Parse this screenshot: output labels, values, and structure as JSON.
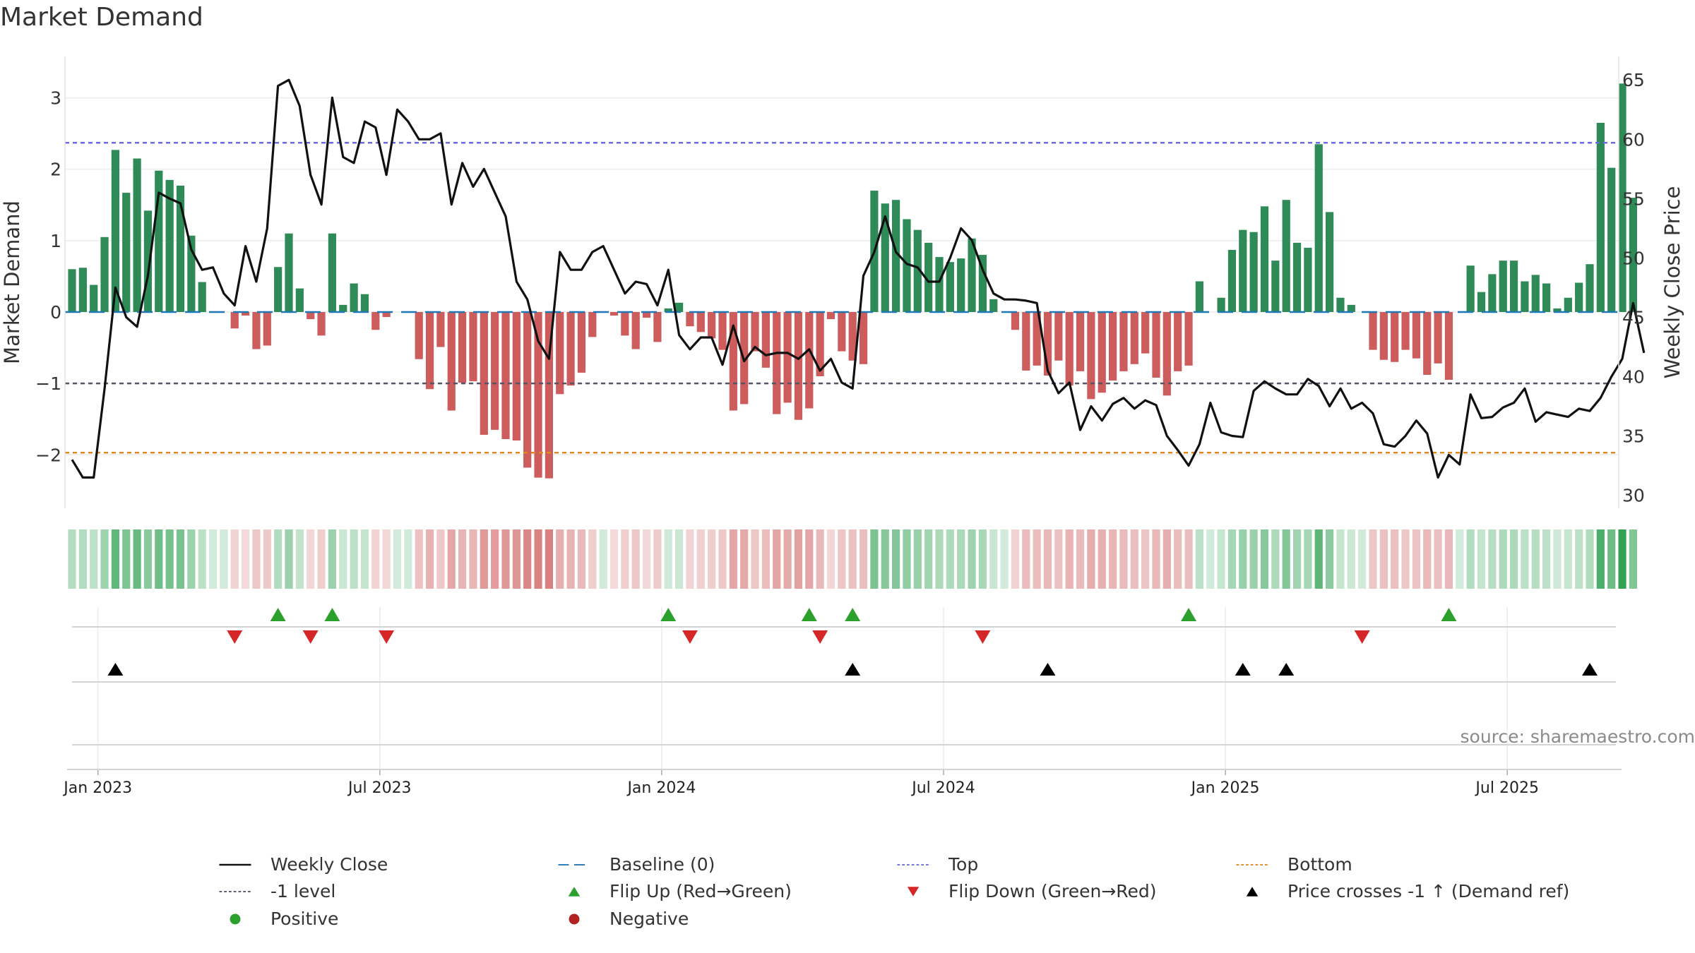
{
  "title": "Market Demand",
  "source": "source: sharemaestro.com",
  "colors": {
    "positive": "#2e8b57",
    "negative": "#cd5c5c",
    "price": "#111111",
    "baseline": "#1f77b4",
    "top": "#6b6be0",
    "minus1": "#555566",
    "bottom": "#e08a1e",
    "flip_up": "#2ca02c",
    "flip_down": "#d62728",
    "cross": "#000000"
  },
  "legend": [
    {
      "key": "close",
      "label": "Weekly Close"
    },
    {
      "key": "baseline",
      "label": "Baseline (0)"
    },
    {
      "key": "top",
      "label": "Top"
    },
    {
      "key": "bottom",
      "label": "Bottom"
    },
    {
      "key": "minus1",
      "label": "-1 level"
    },
    {
      "key": "flip_up",
      "label": "Flip Up (Red→Green)"
    },
    {
      "key": "flip_down",
      "label": "Flip Down (Green→Red)"
    },
    {
      "key": "cross",
      "label": "Price crosses -1 ↑ (Demand ref)"
    },
    {
      "key": "positive",
      "label": "Positive"
    },
    {
      "key": "negative",
      "label": "Negative"
    }
  ],
  "chart_data": {
    "type": "bar",
    "title": "Market Demand",
    "ylabel": "Market Demand",
    "y2label": "Weekly Close Price",
    "ylim": [
      -2.65,
      3.5
    ],
    "y2lim": [
      29.5,
      66.5
    ],
    "yticks": [
      -2,
      -1,
      0,
      1,
      2,
      3
    ],
    "ytick_labels": [
      "−2",
      "−1",
      "0",
      "1",
      "2",
      "3"
    ],
    "y2ticks": [
      30,
      35,
      40,
      45,
      50,
      55,
      60,
      65
    ],
    "y2tick_labels": [
      "30",
      "35",
      "40",
      "45",
      "50",
      "55",
      "60",
      "65"
    ],
    "xticks": [
      2,
      28,
      54,
      80,
      106,
      132
    ],
    "xtick_labels": [
      "Jan 2023",
      "Jul 2023",
      "Jan 2024",
      "Jul 2024",
      "Jan 2025",
      "Jul 2025"
    ],
    "reference_lines": {
      "baseline": 0,
      "top": 2.37,
      "minus1": -1,
      "bottom": -1.97
    },
    "demand": [
      0.6,
      0.62,
      0.38,
      1.05,
      2.27,
      1.67,
      2.15,
      1.42,
      1.98,
      1.85,
      1.77,
      1.07,
      0.42,
      0,
      0,
      -0.23,
      -0.05,
      -0.52,
      -0.47,
      0.63,
      1.1,
      0.33,
      -0.1,
      -0.33,
      1.1,
      0.1,
      0.4,
      0.25,
      -0.25,
      -0.07,
      0,
      0,
      -0.66,
      -1.08,
      -0.49,
      -1.38,
      -0.99,
      -0.97,
      -1.72,
      -1.65,
      -1.78,
      -1.8,
      -2.18,
      -2.32,
      -2.33,
      -1.15,
      -1.03,
      -0.85,
      -0.35,
      0,
      -0.05,
      -0.33,
      -0.52,
      -0.08,
      -0.42,
      0.05,
      0.13,
      -0.2,
      -0.28,
      -0.37,
      -0.53,
      -1.38,
      -1.29,
      -0.55,
      -0.78,
      -1.43,
      -1.27,
      -1.51,
      -1.35,
      -0.9,
      -0.1,
      -0.55,
      -0.68,
      -0.73,
      1.7,
      1.52,
      1.57,
      1.3,
      1.15,
      0.97,
      0.77,
      0.7,
      0.75,
      1.03,
      0.8,
      0.18,
      0,
      -0.25,
      -0.82,
      -0.75,
      -0.89,
      -0.68,
      -1.03,
      -0.83,
      -1.22,
      -1.13,
      -0.96,
      -0.83,
      -0.73,
      -0.58,
      -0.92,
      -1.17,
      -0.83,
      -0.75,
      0.43,
      0,
      0.2,
      0.87,
      1.15,
      1.12,
      1.48,
      0.72,
      1.57,
      0.97,
      0.9,
      2.35,
      1.4,
      0.2,
      0.1,
      0,
      -0.53,
      -0.67,
      -0.7,
      -0.53,
      -0.65,
      -0.88,
      -0.72,
      -0.95,
      0,
      0.65,
      0.28,
      0.53,
      0.72,
      0.72,
      0.43,
      0.52,
      0.4,
      0.05,
      0.2,
      0.41,
      0.67,
      2.65,
      2.02,
      3.2,
      1.6
    ],
    "close": [
      33,
      31.5,
      31.5,
      39,
      47.5,
      45,
      44.2,
      48.5,
      55.5,
      55,
      54.6,
      50.7,
      49,
      49.2,
      47,
      46,
      51,
      48,
      52.5,
      64.5,
      65,
      62.8,
      57,
      54.5,
      63.5,
      58.5,
      58,
      61.5,
      61,
      57,
      62.5,
      61.5,
      60,
      60,
      60.5,
      54.5,
      58,
      56,
      57.5,
      55.5,
      53.5,
      48,
      46.5,
      43,
      41.5,
      50.5,
      49,
      49,
      50.5,
      51,
      49,
      47,
      48,
      47.8,
      46,
      49,
      43.5,
      42.3,
      43.3,
      43.3,
      41,
      44.3,
      41.3,
      42.5,
      41.8,
      42,
      42,
      41.5,
      42.3,
      40.5,
      41.5,
      39.5,
      39,
      48.5,
      50.5,
      53.5,
      50.5,
      49.5,
      49.2,
      48,
      48,
      50,
      52.5,
      51.5,
      49,
      47,
      46.5,
      46.5,
      46.4,
      46.2,
      40.5,
      38.6,
      39.5,
      35.5,
      37.5,
      36.3,
      37.7,
      38.2,
      37.3,
      38,
      37.6,
      35,
      33.8,
      32.5,
      34.3,
      37.8,
      35.3,
      35,
      34.9,
      38.8,
      39.6,
      39,
      38.5,
      38.5,
      39.8,
      39.2,
      37.5,
      39,
      37.3,
      37.8,
      36.9,
      34.3,
      34.1,
      35,
      36.3,
      35.2,
      31.5,
      33.4,
      32.6,
      38.5,
      36.5,
      36.6,
      37.4,
      37.8,
      39,
      36.2,
      37,
      36.8,
      36.6,
      37.3,
      37.1,
      38.2,
      40,
      41.5,
      46.2,
      42
    ]
  },
  "flip_up_weeks": [
    19,
    24,
    55,
    68,
    72,
    103,
    127
  ],
  "flip_down_weeks": [
    15,
    22,
    29,
    57,
    69,
    84,
    119
  ],
  "price_cross_weeks": [
    4,
    72,
    90,
    108,
    112,
    140
  ]
}
